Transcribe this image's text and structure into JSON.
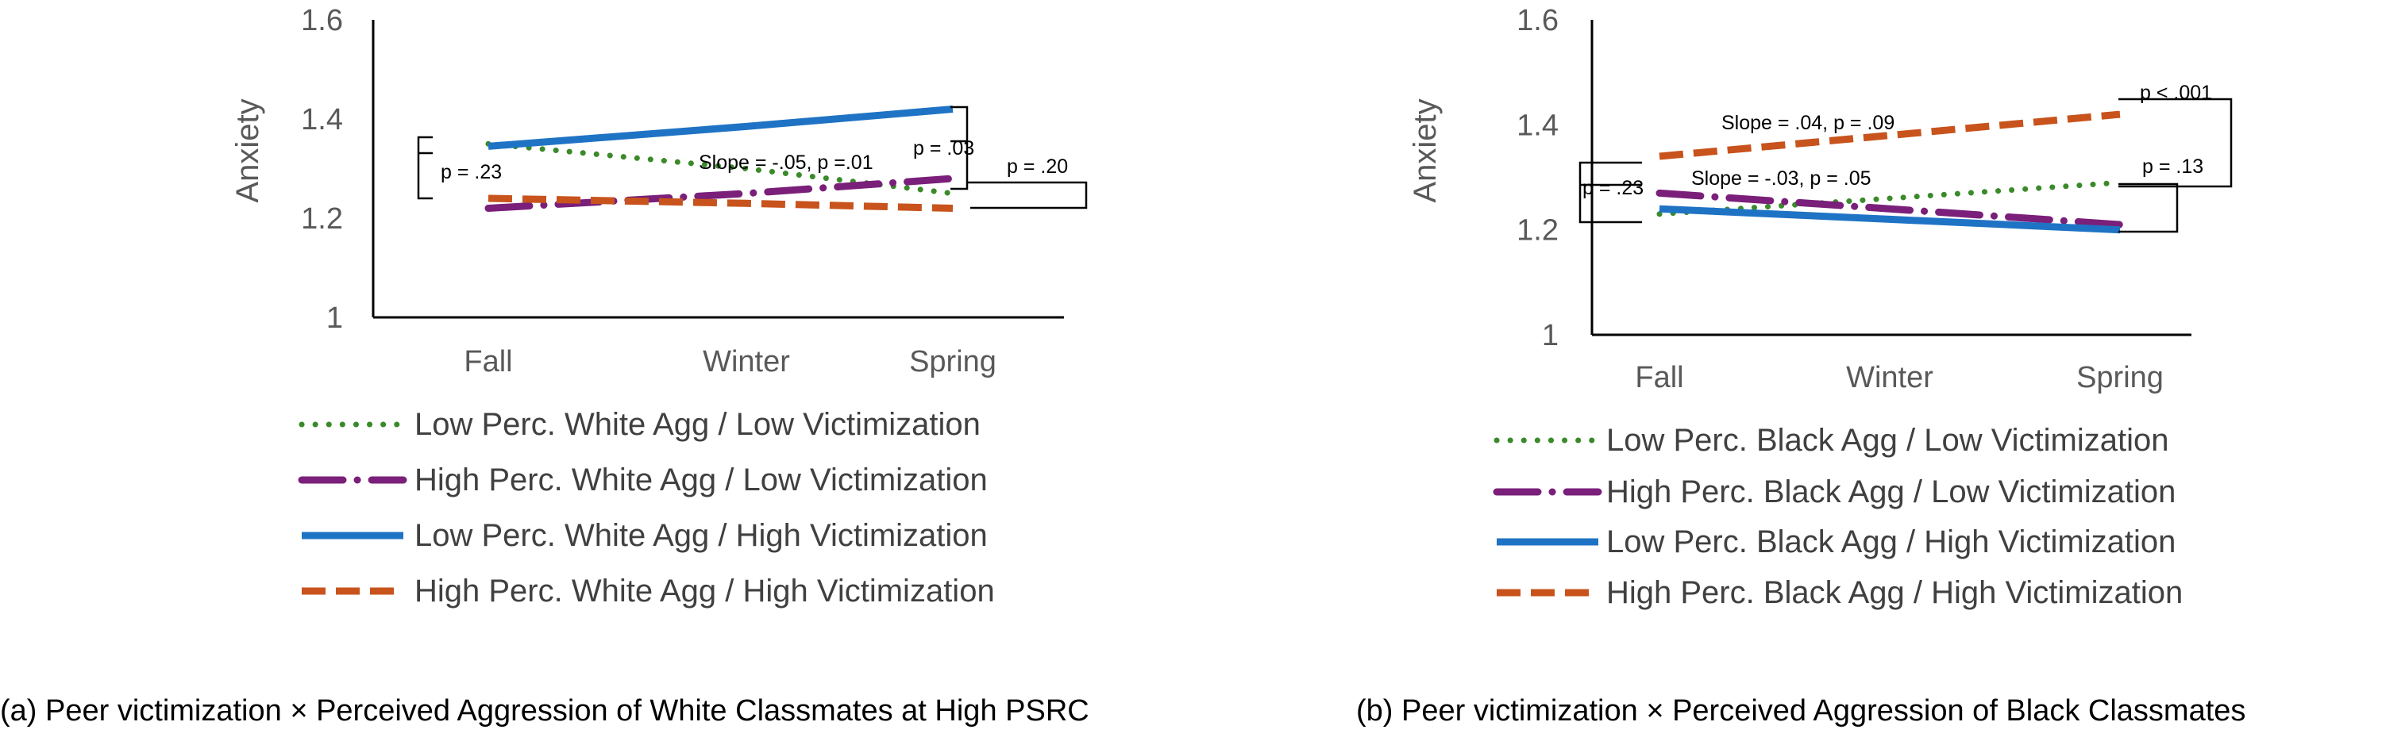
{
  "colors": {
    "green": "#3a8a2a",
    "purple": "#7a1f7a",
    "blue": "#1f73c4",
    "orange": "#c8531c",
    "axis": "#000000",
    "text": "#595959"
  },
  "chart_data": [
    {
      "type": "line",
      "title": "",
      "caption": "(a)  Peer victimization × Perceived Aggression of White Classmates at High PSRC",
      "xlabel": "",
      "ylabel": "Anxiety",
      "categories": [
        "Fall",
        "Winter",
        "Spring"
      ],
      "ylim": [
        1,
        1.6
      ],
      "yticks": [
        "1",
        "1.2",
        "1.4",
        "1.6"
      ],
      "grid": false,
      "legend_position": "bottom",
      "series": [
        {
          "name": "Low Perc. White Agg / Low Victimization",
          "style": "dotted",
          "color": "#3a8a2a",
          "values": [
            1.35,
            1.3,
            1.25
          ]
        },
        {
          "name": "High Perc. White Agg / Low Victimization",
          "style": "dashdot",
          "color": "#7a1f7a",
          "values": [
            1.22,
            1.25,
            1.28
          ]
        },
        {
          "name": "Low Perc. White Agg / High Victimization",
          "style": "solid",
          "color": "#1f73c4",
          "values": [
            1.345,
            1.385,
            1.42
          ]
        },
        {
          "name": "High Perc. White Agg / High Victimization",
          "style": "dashed",
          "color": "#c8531c",
          "values": [
            1.24,
            1.23,
            1.22
          ]
        }
      ],
      "annotations": [
        "p = .23",
        "Slope = -.05, p =.01",
        "p = .03",
        "p = .20"
      ]
    },
    {
      "type": "line",
      "title": "",
      "caption": "(b) Peer victimization × Perceived Aggression of Black Classmates",
      "xlabel": "",
      "ylabel": "Anxiety",
      "categories": [
        "Fall",
        "Winter",
        "Spring"
      ],
      "ylim": [
        1,
        1.6
      ],
      "yticks": [
        "1",
        "1.2",
        "1.4",
        "1.6"
      ],
      "grid": false,
      "legend_position": "bottom",
      "series": [
        {
          "name": "Low Perc. Black Agg / Low Victimization",
          "style": "dotted",
          "color": "#3a8a2a",
          "values": [
            1.23,
            1.26,
            1.29
          ]
        },
        {
          "name": "High Perc. Black Agg / Low Victimization",
          "style": "dashdot",
          "color": "#7a1f7a",
          "values": [
            1.27,
            1.24,
            1.21
          ]
        },
        {
          "name": "Low Perc. Black Agg / High Victimization",
          "style": "solid",
          "color": "#1f73c4",
          "values": [
            1.24,
            1.22,
            1.2
          ]
        },
        {
          "name": "High Perc. Black Agg / High Victimization",
          "style": "dashed",
          "color": "#c8531c",
          "values": [
            1.34,
            1.38,
            1.42
          ]
        }
      ],
      "annotations": [
        "p = .23",
        "Slope = .04, p = .09",
        "p < .001",
        "Slope = -.03, p = .05",
        "p = .13"
      ]
    }
  ]
}
